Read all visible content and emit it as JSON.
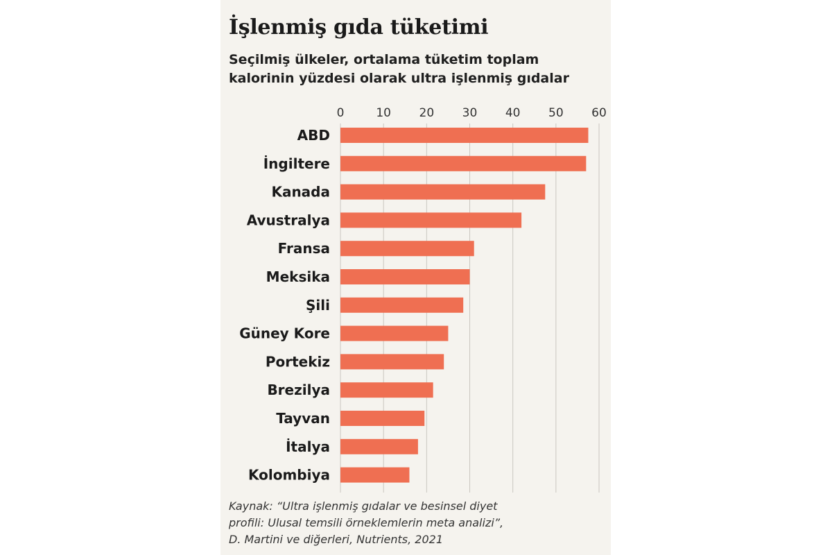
{
  "header": {
    "title": "İşlenmiş gıda tüketimi",
    "subtitle_line1": "Seçilmiş ülkeler, ortalama tüketim toplam",
    "subtitle_line2": "kalorinin yüzdesi olarak ultra işlenmiş gıdalar"
  },
  "source": {
    "line1": "Kaynak: “Ultra işlenmiş gıdalar ve besinsel diyet",
    "line2": "profili: Ulusal temsili örneklemlerin meta analizi”,",
    "line3": "D. Martini ve diğerleri, Nutrients, 2021"
  },
  "colors": {
    "bar": "#ef6f52",
    "grid": "#c9c6c0",
    "panel": "#f5f3ee"
  },
  "chart_data": {
    "type": "bar",
    "orientation": "horizontal",
    "categories": [
      "ABD",
      "İngiltere",
      "Kanada",
      "Avustralya",
      "Fransa",
      "Meksika",
      "Şili",
      "Güney Kore",
      "Portekiz",
      "Brezilya",
      "Tayvan",
      "İtalya",
      "Kolombiya"
    ],
    "values": [
      57.5,
      57,
      47.5,
      42,
      31,
      30,
      28.5,
      25,
      24,
      21.5,
      19.5,
      18,
      16
    ],
    "xlim": [
      0,
      60
    ],
    "ticks": [
      "0",
      "10",
      "20",
      "30",
      "40",
      "50",
      "60"
    ],
    "tick_values": [
      0,
      10,
      20,
      30,
      40,
      50,
      60
    ],
    "grid": true,
    "axis_position": "top"
  }
}
